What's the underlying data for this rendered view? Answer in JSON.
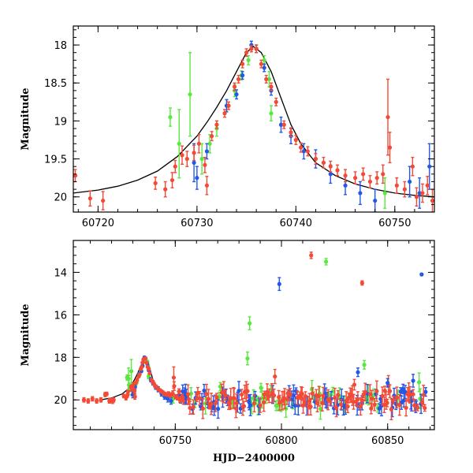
{
  "colors": {
    "r": "#f24a36",
    "g": "#58e83e",
    "b": "#2357e8",
    "model": "#000000"
  },
  "chart_data": [
    {
      "type": "scatter",
      "name": "zoom-panel",
      "title": "",
      "xlabel": "",
      "ylabel": "Magnitude",
      "xlim": [
        60717.5,
        60754
      ],
      "ylim": [
        20.2,
        17.75
      ],
      "y_inverted": true,
      "xticks": [
        60720,
        60730,
        60740,
        60750
      ],
      "yticks": [
        18,
        18.5,
        19,
        19.5,
        20
      ],
      "ytick_labels": [
        "18",
        "18.5",
        "19",
        "19.5",
        "20"
      ],
      "points": {
        "r": [
          [
            60717.7,
            19.72,
            0.08
          ],
          [
            60719.2,
            20.02,
            0.1
          ],
          [
            60720.5,
            20.05,
            0.12
          ],
          [
            60725.8,
            19.82,
            0.08
          ],
          [
            60726.8,
            19.9,
            0.1
          ],
          [
            60727.5,
            19.78,
            0.1
          ],
          [
            60727.8,
            19.6,
            0.08
          ],
          [
            60728.5,
            19.45,
            0.12
          ],
          [
            60729.0,
            19.5,
            0.1
          ],
          [
            60729.7,
            19.42,
            0.1
          ],
          [
            60730.2,
            19.3,
            0.12
          ],
          [
            60730.8,
            19.58,
            0.1
          ],
          [
            60731.0,
            19.85,
            0.12
          ],
          [
            60731.5,
            19.2,
            0.06
          ],
          [
            60732.0,
            19.05,
            0.05
          ],
          [
            60732.8,
            18.9,
            0.05
          ],
          [
            60733.2,
            18.8,
            0.05
          ],
          [
            60733.8,
            18.55,
            0.05
          ],
          [
            60734.2,
            18.45,
            0.05
          ],
          [
            60734.6,
            18.25,
            0.05
          ],
          [
            60735.0,
            18.1,
            0.05
          ],
          [
            60735.5,
            18.05,
            0.04
          ],
          [
            60736.0,
            18.05,
            0.05
          ],
          [
            60736.5,
            18.25,
            0.05
          ],
          [
            60737.0,
            18.45,
            0.05
          ],
          [
            60737.5,
            18.55,
            0.05
          ],
          [
            60738.0,
            18.75,
            0.05
          ],
          [
            60738.8,
            19.05,
            0.05
          ],
          [
            60739.5,
            19.15,
            0.06
          ],
          [
            60740.0,
            19.25,
            0.06
          ],
          [
            60740.5,
            19.35,
            0.06
          ],
          [
            60741.2,
            19.4,
            0.06
          ],
          [
            60742.0,
            19.5,
            0.07
          ],
          [
            60742.8,
            19.55,
            0.07
          ],
          [
            60743.5,
            19.6,
            0.07
          ],
          [
            60744.2,
            19.65,
            0.07
          ],
          [
            60745.0,
            19.72,
            0.08
          ],
          [
            60746.0,
            19.75,
            0.08
          ],
          [
            60746.8,
            19.7,
            0.08
          ],
          [
            60747.5,
            19.8,
            0.08
          ],
          [
            60748.2,
            19.75,
            0.08
          ],
          [
            60748.8,
            19.7,
            0.12
          ],
          [
            60749.3,
            18.95,
            0.5
          ],
          [
            60749.5,
            19.35,
            0.2
          ],
          [
            60750.2,
            19.85,
            0.1
          ],
          [
            60751.0,
            19.9,
            0.1
          ],
          [
            60751.8,
            19.6,
            0.12
          ],
          [
            60752.2,
            20.0,
            0.12
          ],
          [
            60752.8,
            19.95,
            0.12
          ],
          [
            60753.3,
            19.85,
            0.12
          ],
          [
            60753.8,
            20.05,
            0.15
          ]
        ],
        "g": [
          [
            60727.3,
            18.95,
            0.12
          ],
          [
            60728.2,
            19.3,
            0.45
          ],
          [
            60729.3,
            18.65,
            0.55
          ],
          [
            60730.5,
            19.5,
            0.2
          ],
          [
            60731.3,
            19.3,
            0.12
          ],
          [
            60732.0,
            19.1,
            0.1
          ],
          [
            60733.0,
            18.8,
            0.08
          ],
          [
            60733.8,
            18.6,
            0.08
          ],
          [
            60734.5,
            18.4,
            0.06
          ],
          [
            60735.2,
            18.2,
            0.06
          ],
          [
            60736.0,
            18.05,
            0.05
          ],
          [
            60736.8,
            18.2,
            0.06
          ],
          [
            60737.3,
            18.45,
            0.1
          ],
          [
            60737.5,
            18.9,
            0.1
          ],
          [
            60749.0,
            19.95,
            0.2
          ]
        ],
        "b": [
          [
            60729.7,
            19.55,
            0.25
          ],
          [
            60730.0,
            19.75,
            0.15
          ],
          [
            60731.0,
            19.4,
            0.1
          ],
          [
            60733.0,
            18.8,
            0.08
          ],
          [
            60734.0,
            18.65,
            0.06
          ],
          [
            60734.6,
            18.4,
            0.05
          ],
          [
            60735.5,
            18.0,
            0.05
          ],
          [
            60736.0,
            18.05,
            0.05
          ],
          [
            60736.8,
            18.3,
            0.05
          ],
          [
            60737.5,
            18.6,
            0.06
          ],
          [
            60738.5,
            19.05,
            0.1
          ],
          [
            60739.5,
            19.2,
            0.1
          ],
          [
            60740.8,
            19.4,
            0.1
          ],
          [
            60742.0,
            19.5,
            0.12
          ],
          [
            60743.5,
            19.7,
            0.12
          ],
          [
            60745.0,
            19.85,
            0.12
          ],
          [
            60746.5,
            19.95,
            0.15
          ],
          [
            60748.0,
            20.05,
            0.15
          ],
          [
            60751.5,
            19.8,
            0.2
          ],
          [
            60752.5,
            19.95,
            0.2
          ],
          [
            60753.5,
            19.6,
            0.3
          ]
        ]
      },
      "model_curve": [
        [
          60717.5,
          19.95
        ],
        [
          60720,
          19.91
        ],
        [
          60722,
          19.86
        ],
        [
          60724,
          19.78
        ],
        [
          60726,
          19.66
        ],
        [
          60728,
          19.47
        ],
        [
          60730,
          19.2
        ],
        [
          60731,
          19.02
        ],
        [
          60732,
          18.82
        ],
        [
          60733,
          18.6
        ],
        [
          60734,
          18.35
        ],
        [
          60735,
          18.1
        ],
        [
          60735.7,
          18.02
        ],
        [
          60736.5,
          18.1
        ],
        [
          60737.5,
          18.35
        ],
        [
          60738.5,
          18.7
        ],
        [
          60739.5,
          19.05
        ],
        [
          60740.5,
          19.3
        ],
        [
          60742,
          19.55
        ],
        [
          60744,
          19.72
        ],
        [
          60746,
          19.83
        ],
        [
          60748,
          19.9
        ],
        [
          60750,
          19.95
        ],
        [
          60752,
          19.98
        ],
        [
          60754,
          20.0
        ]
      ]
    },
    {
      "type": "scatter",
      "name": "full-panel",
      "title": "",
      "xlabel": "HJD−2400000",
      "ylabel": "Magnitude",
      "xlim": [
        60702,
        60872
      ],
      "ylim": [
        21.4,
        12.5
      ],
      "y_inverted": true,
      "xticks": [
        60750,
        60800,
        60850
      ],
      "yticks": [
        14,
        16,
        18,
        20
      ],
      "ytick_labels": [
        "14",
        "16",
        "18",
        "20"
      ],
      "outliers": {
        "r": [
          [
            60814,
            13.2,
            0.15
          ],
          [
            60838,
            14.5,
            0.1
          ]
        ],
        "g": [
          [
            60821,
            13.5,
            0.15
          ],
          [
            60785,
            16.4,
            0.3
          ],
          [
            60784,
            18.05,
            0.3
          ],
          [
            60839,
            18.35,
            0.2
          ],
          [
            60728,
            19.0,
            0.5
          ]
        ],
        "b": [
          [
            60799,
            14.55,
            0.3
          ],
          [
            60866,
            14.1,
            0.05
          ],
          [
            60836,
            18.7,
            0.2
          ],
          [
            60850,
            19.2,
            0.2
          ],
          [
            60862,
            19.1,
            0.3
          ]
        ]
      },
      "model_curve": [
        [
          60715,
          20.0
        ],
        [
          60720,
          19.91
        ],
        [
          60725,
          19.72
        ],
        [
          60728,
          19.47
        ],
        [
          60730,
          19.2
        ],
        [
          60732,
          18.82
        ],
        [
          60734,
          18.35
        ],
        [
          60735.7,
          18.02
        ],
        [
          60737.5,
          18.35
        ],
        [
          60739.5,
          19.05
        ],
        [
          60742,
          19.55
        ],
        [
          60746,
          19.83
        ],
        [
          60750,
          19.95
        ],
        [
          60756,
          20.0
        ]
      ]
    }
  ]
}
